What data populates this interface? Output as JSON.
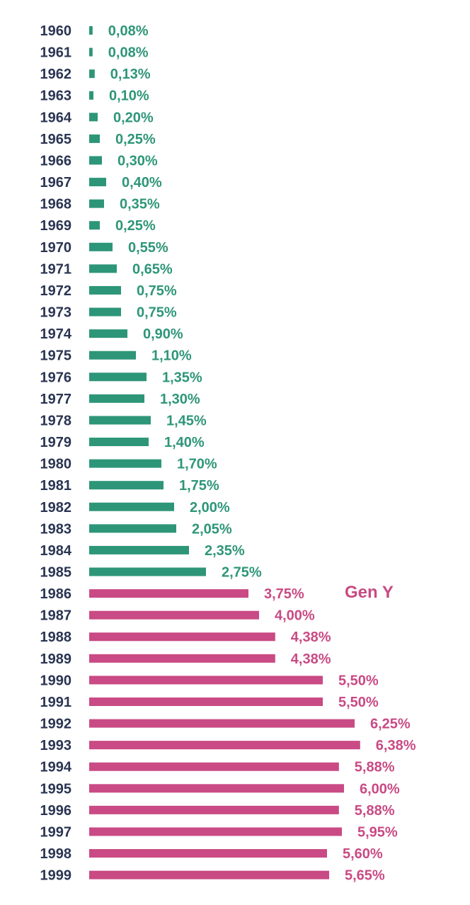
{
  "chart_data": {
    "type": "bar",
    "orientation": "horizontal",
    "categories": [
      "1960",
      "1961",
      "1962",
      "1963",
      "1964",
      "1965",
      "1966",
      "1967",
      "1968",
      "1969",
      "1970",
      "1971",
      "1972",
      "1973",
      "1974",
      "1975",
      "1976",
      "1977",
      "1978",
      "1979",
      "1980",
      "1981",
      "1982",
      "1983",
      "1984",
      "1985",
      "1986",
      "1987",
      "1988",
      "1989",
      "1990",
      "1991",
      "1992",
      "1993",
      "1994",
      "1995",
      "1996",
      "1997",
      "1998",
      "1999"
    ],
    "values": [
      0.08,
      0.08,
      0.13,
      0.1,
      0.2,
      0.25,
      0.3,
      0.4,
      0.35,
      0.25,
      0.55,
      0.65,
      0.75,
      0.75,
      0.9,
      1.1,
      1.35,
      1.3,
      1.45,
      1.4,
      1.7,
      1.75,
      2.0,
      2.05,
      2.35,
      2.75,
      3.75,
      4.0,
      4.38,
      4.38,
      5.5,
      5.5,
      6.25,
      6.38,
      5.88,
      6.0,
      5.88,
      5.95,
      5.6,
      5.65
    ],
    "value_labels": [
      "0,08%",
      "0,08%",
      "0,13%",
      "0,10%",
      "0,20%",
      "0,25%",
      "0,30%",
      "0,40%",
      "0,35%",
      "0,25%",
      "0,55%",
      "0,65%",
      "0,75%",
      "0,75%",
      "0,90%",
      "1,10%",
      "1,35%",
      "1,30%",
      "1,45%",
      "1,40%",
      "1,70%",
      "1,75%",
      "2,00%",
      "2,05%",
      "2,35%",
      "2,75%",
      "3,75%",
      "4,00%",
      "4,38%",
      "4,38%",
      "5,50%",
      "5,50%",
      "6,25%",
      "6,38%",
      "5,88%",
      "6,00%",
      "5,88%",
      "5,95%",
      "5,60%",
      "5,65%"
    ],
    "groups": [
      {
        "from": "1960",
        "to": "1985",
        "color": "#2e9678"
      },
      {
        "from": "1986",
        "to": "1999",
        "color": "#c94a84",
        "annotation": "Gen Y"
      }
    ],
    "title": "",
    "xlabel": "",
    "ylabel": "",
    "grid": false
  },
  "colors": {
    "year_text": "#2b3553",
    "green": "#2e9678",
    "pink": "#c94a84"
  }
}
